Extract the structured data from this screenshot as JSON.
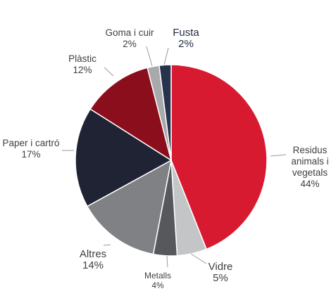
{
  "chart_data": {
    "type": "pie",
    "title": "",
    "unit": "%",
    "start_angle_deg": 0,
    "direction": "clockwise",
    "slices": [
      {
        "name": "Residus animals i vegetals",
        "label_lines": [
          "Residus",
          "animals i",
          "vegetals"
        ],
        "value": 44,
        "value_label": "44%",
        "color": "#d71a30"
      },
      {
        "name": "Vidre",
        "label_lines": [
          "Vidre"
        ],
        "value": 5,
        "value_label": "5%",
        "color": "#c4c5c7"
      },
      {
        "name": "Metalls",
        "label_lines": [
          "Metalls"
        ],
        "value": 4,
        "value_label": "4%",
        "color": "#56585c"
      },
      {
        "name": "Altres",
        "label_lines": [
          "Altres"
        ],
        "value": 14,
        "value_label": "14%",
        "color": "#7f8185"
      },
      {
        "name": "Paper i cartró",
        "label_lines": [
          "Paper i cartró"
        ],
        "value": 17,
        "value_label": "17%",
        "color": "#1f2334"
      },
      {
        "name": "Plàstic",
        "label_lines": [
          "Plàstic"
        ],
        "value": 12,
        "value_label": "12%",
        "color": "#8b0e1c"
      },
      {
        "name": "Goma i cuir",
        "label_lines": [
          "Goma i cuir"
        ],
        "value": 2,
        "value_label": "2%",
        "color": "#a8a9ab"
      },
      {
        "name": "Fusta",
        "label_lines": [
          "Fusta"
        ],
        "value": 2,
        "value_label": "2%",
        "color": "#27324c"
      }
    ]
  }
}
